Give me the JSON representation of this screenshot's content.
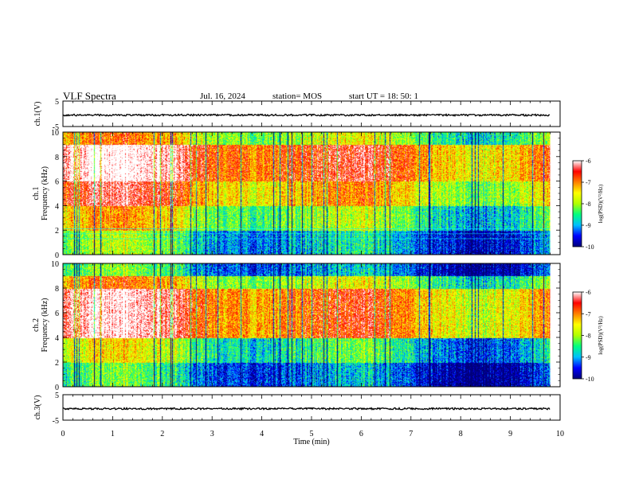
{
  "header": {
    "title": "VLF Spectra",
    "date": "Jul. 16, 2024",
    "station": "station= MOS",
    "start": "start UT = 18: 50: 1"
  },
  "colors": {
    "spectrogram_stops": [
      "#00007a",
      "#0000ff",
      "#00bfff",
      "#00ff80",
      "#b0ff00",
      "#ffff00",
      "#ff8000",
      "#ff0000",
      "#ffffff"
    ],
    "axis": "#000000"
  },
  "chart_data": [
    {
      "type": "line",
      "name": "ch1-waveform",
      "ylabel": "ch.1(V)",
      "ylim": [
        -5,
        5
      ],
      "yticks": [
        "5",
        "-5"
      ],
      "baseline": -0.5
    },
    {
      "type": "heatmap",
      "name": "ch1-spectrogram",
      "ylabel_channel": "ch.1",
      "ylabel": "Frequency (kHz)",
      "ylim": [
        0,
        10
      ],
      "yticks": [
        "0",
        "2",
        "4",
        "6",
        "8",
        "10"
      ],
      "zlabel": "log(PSD)(V²/Hz)",
      "zlim": [
        -10,
        -6
      ],
      "zticks": [
        "-6",
        "-7",
        "-8",
        "-9",
        "-10"
      ],
      "bands_khz": [
        {
          "low": 0,
          "high": 2,
          "level": -9.0
        },
        {
          "low": 2,
          "high": 4,
          "level": -8.2
        },
        {
          "low": 4,
          "high": 6,
          "level": -7.4
        },
        {
          "low": 6,
          "high": 9,
          "level": -6.8
        },
        {
          "low": 9,
          "high": 10,
          "level": -8.0
        }
      ]
    },
    {
      "type": "heatmap",
      "name": "ch2-spectrogram",
      "ylabel_channel": "ch.2",
      "ylabel": "Frequency (kHz)",
      "ylim": [
        0,
        10
      ],
      "yticks": [
        "0",
        "2",
        "4",
        "6",
        "8",
        "10"
      ],
      "zlabel": "log(PSD)(V²/Hz)",
      "zlim": [
        -10,
        -6
      ],
      "zticks": [
        "-6",
        "-7",
        "-8",
        "-9",
        "-10"
      ],
      "bands_khz": [
        {
          "low": 0,
          "high": 2,
          "level": -9.3
        },
        {
          "low": 2,
          "high": 4,
          "level": -8.6
        },
        {
          "low": 4,
          "high": 8,
          "level": -7.0
        },
        {
          "low": 8,
          "high": 9,
          "level": -8.0
        },
        {
          "low": 9,
          "high": 10,
          "level": -9.2
        }
      ]
    },
    {
      "type": "line",
      "name": "ch3-waveform",
      "ylabel": "ch.3(V)",
      "ylim": [
        -5,
        5
      ],
      "yticks": [
        "5",
        "-5"
      ],
      "baseline": -0.5
    }
  ],
  "xaxis": {
    "label": "Time (min)",
    "range": [
      0,
      10
    ],
    "ticks": [
      "0",
      "1",
      "2",
      "3",
      "4",
      "5",
      "6",
      "7",
      "8",
      "9",
      "10"
    ],
    "data_end": 9.8
  }
}
